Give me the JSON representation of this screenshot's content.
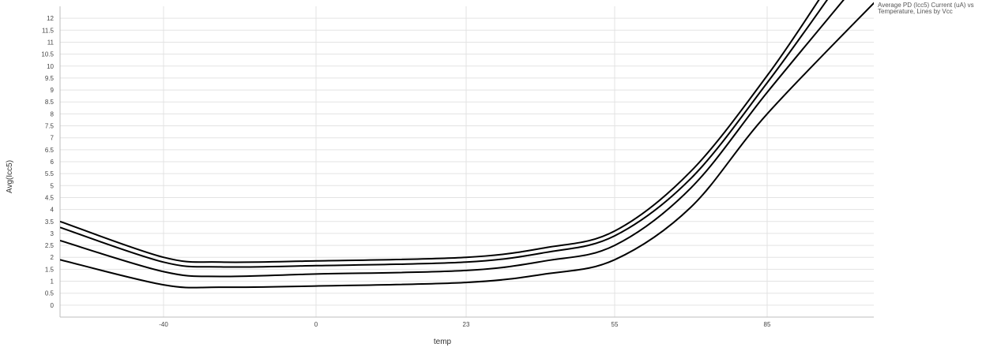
{
  "chart_data": {
    "type": "line",
    "title": "Average PD (Icc5) Current (uA) vs Temperature, Lines by Vcc",
    "xlabel": "temp",
    "ylabel": "Avg(Icc5)",
    "x_ticks": [
      "-40",
      "0",
      "23",
      "55",
      "85"
    ],
    "y_ticks": [
      "0",
      "0.5",
      "1",
      "1.5",
      "2",
      "2.5",
      "3",
      "3.5",
      "4",
      "4.5",
      "5",
      "5.5",
      "6",
      "6.5",
      "7",
      "7.5",
      "8",
      "8.5",
      "9",
      "9.5",
      "10",
      "10.5",
      "11",
      "11.5",
      "12"
    ],
    "ylim": [
      -0.5,
      12.5
    ],
    "grid": true,
    "line_color": "#000000",
    "series": [
      {
        "x": [
          "-65",
          "-40",
          "-25",
          "0",
          "23",
          "40",
          "55",
          "70",
          "85",
          "98"
        ],
        "values": [
          3.5,
          2.0,
          1.8,
          1.85,
          2.0,
          2.4,
          3.1,
          5.6,
          9.6,
          13.0
        ]
      },
      {
        "x": [
          "-65",
          "-40",
          "-25",
          "0",
          "23",
          "40",
          "55",
          "70",
          "85",
          "100"
        ],
        "values": [
          3.25,
          1.8,
          1.6,
          1.65,
          1.8,
          2.2,
          2.9,
          5.3,
          9.3,
          13.0
        ]
      },
      {
        "x": [
          "-65",
          "-40",
          "-25",
          "0",
          "23",
          "40",
          "55",
          "70",
          "85",
          "104"
        ],
        "values": [
          2.7,
          1.4,
          1.2,
          1.3,
          1.45,
          1.85,
          2.5,
          4.9,
          8.9,
          13.0
        ]
      },
      {
        "x": [
          "-65",
          "-40",
          "-25",
          "0",
          "23",
          "40",
          "55",
          "70",
          "85",
          "112"
        ],
        "values": [
          1.9,
          0.85,
          0.75,
          0.8,
          0.95,
          1.3,
          1.9,
          4.1,
          8.0,
          13.0
        ]
      }
    ]
  }
}
